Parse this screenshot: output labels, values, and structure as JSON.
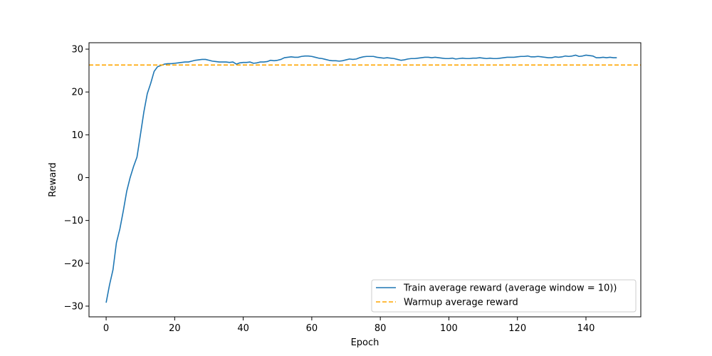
{
  "chart_data": {
    "type": "line",
    "title": "",
    "xlabel": "Epoch",
    "ylabel": "Reward",
    "xlim": [
      -5,
      156
    ],
    "ylim": [
      -32.5,
      31.5
    ],
    "xticks": [
      0,
      20,
      40,
      60,
      80,
      100,
      120,
      140
    ],
    "yticks": [
      -30,
      -20,
      -10,
      0,
      10,
      20,
      30
    ],
    "grid": false,
    "legend_position": "bottom-right",
    "series": [
      {
        "name": "Train average reward (average window = 10))",
        "color": "#1f77b4",
        "style": "solid",
        "x": [
          0,
          1,
          2,
          3,
          4,
          5,
          6,
          7,
          8,
          9,
          10,
          11,
          12,
          13,
          14,
          15,
          16,
          17,
          18,
          19,
          20,
          21,
          22,
          23,
          24,
          25,
          26,
          27,
          28,
          29,
          30,
          31,
          32,
          33,
          34,
          35,
          36,
          37,
          38,
          39,
          40,
          41,
          42,
          43,
          44,
          45,
          46,
          47,
          48,
          49,
          50,
          51,
          52,
          53,
          54,
          55,
          56,
          57,
          58,
          59,
          60,
          61,
          62,
          63,
          64,
          65,
          66,
          67,
          68,
          69,
          70,
          71,
          72,
          73,
          74,
          75,
          76,
          77,
          78,
          79,
          80,
          81,
          82,
          83,
          84,
          85,
          86,
          87,
          88,
          89,
          90,
          91,
          92,
          93,
          94,
          95,
          96,
          97,
          98,
          99,
          100,
          101,
          102,
          103,
          104,
          105,
          106,
          107,
          108,
          109,
          110,
          111,
          112,
          113,
          114,
          115,
          116,
          117,
          118,
          119,
          120,
          121,
          122,
          123,
          124,
          125,
          126,
          127,
          128,
          129,
          130,
          131,
          132,
          133,
          134,
          135,
          136,
          137,
          138,
          139,
          140,
          141,
          142,
          143,
          144,
          145,
          146,
          147,
          148,
          149
        ],
        "y": [
          -29.2,
          -25.0,
          -21.5,
          -15.2,
          -12.0,
          -7.8,
          -3.2,
          0.0,
          2.6,
          4.8,
          10.0,
          15.3,
          19.6,
          22.0,
          24.8,
          25.9,
          26.2,
          26.5,
          26.6,
          26.6,
          26.7,
          26.8,
          26.9,
          27.0,
          27.0,
          27.2,
          27.4,
          27.5,
          27.6,
          27.6,
          27.4,
          27.2,
          27.1,
          27.0,
          27.0,
          27.0,
          26.9,
          27.0,
          26.5,
          26.8,
          26.9,
          26.9,
          27.0,
          26.7,
          26.8,
          27.0,
          27.0,
          27.1,
          27.4,
          27.3,
          27.4,
          27.6,
          28.0,
          28.1,
          28.2,
          28.1,
          28.1,
          28.3,
          28.4,
          28.4,
          28.3,
          28.1,
          27.9,
          27.8,
          27.6,
          27.4,
          27.3,
          27.3,
          27.2,
          27.3,
          27.5,
          27.7,
          27.6,
          27.7,
          28.0,
          28.2,
          28.3,
          28.3,
          28.3,
          28.1,
          28.0,
          27.9,
          28.0,
          27.9,
          27.8,
          27.6,
          27.4,
          27.5,
          27.7,
          27.8,
          27.8,
          27.9,
          28.0,
          28.1,
          28.1,
          28.0,
          28.1,
          28.0,
          27.9,
          27.8,
          27.8,
          27.9,
          27.7,
          27.8,
          27.9,
          27.8,
          27.8,
          27.9,
          27.9,
          28.0,
          27.9,
          27.8,
          27.9,
          27.8,
          27.8,
          27.9,
          28.0,
          28.1,
          28.1,
          28.1,
          28.2,
          28.3,
          28.3,
          28.4,
          28.2,
          28.2,
          28.3,
          28.2,
          28.1,
          28.0,
          28.0,
          28.2,
          28.1,
          28.2,
          28.4,
          28.3,
          28.4,
          28.6,
          28.3,
          28.4,
          28.6,
          28.5,
          28.4,
          28.0,
          28.0,
          28.1,
          28.0,
          28.1,
          28.0,
          28.0
        ]
      },
      {
        "name": "Warmup average reward",
        "color": "#ffa500",
        "style": "dashed",
        "constant_y": 26.3
      }
    ]
  }
}
